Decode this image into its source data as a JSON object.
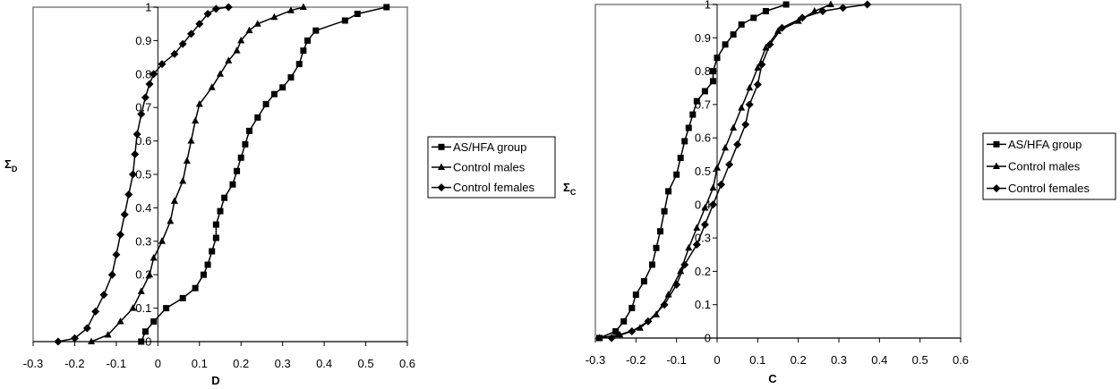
{
  "chart_data": [
    {
      "type": "line",
      "xlabel": "D",
      "ylabel": "Σ",
      "ylabel_sub": "D",
      "xlim": [
        -0.3,
        0.6
      ],
      "ylim": [
        0,
        1
      ],
      "x_ticks": [
        "-0.3",
        "-0.2",
        "-0.1",
        "0",
        "0.1",
        "0.2",
        "0.3",
        "0.4",
        "0.5",
        "0.6"
      ],
      "y_ticks": [
        "0",
        "0.1",
        "0.2",
        "0.3",
        "0.4",
        "0.5",
        "0.6",
        "0.7",
        "0.8",
        "0.9",
        "1"
      ],
      "grid": false,
      "legend": "right",
      "series": [
        {
          "name": "AS/HFA group",
          "marker": "square",
          "points": [
            [
              -0.04,
              0.0
            ],
            [
              -0.03,
              0.03
            ],
            [
              -0.01,
              0.06
            ],
            [
              0.02,
              0.1
            ],
            [
              0.06,
              0.13
            ],
            [
              0.09,
              0.16
            ],
            [
              0.11,
              0.2
            ],
            [
              0.12,
              0.23
            ],
            [
              0.13,
              0.27
            ],
            [
              0.14,
              0.31
            ],
            [
              0.14,
              0.35
            ],
            [
              0.15,
              0.39
            ],
            [
              0.16,
              0.43
            ],
            [
              0.18,
              0.47
            ],
            [
              0.19,
              0.51
            ],
            [
              0.2,
              0.55
            ],
            [
              0.21,
              0.59
            ],
            [
              0.22,
              0.63
            ],
            [
              0.24,
              0.67
            ],
            [
              0.26,
              0.71
            ],
            [
              0.28,
              0.74
            ],
            [
              0.3,
              0.76
            ],
            [
              0.32,
              0.79
            ],
            [
              0.34,
              0.83
            ],
            [
              0.35,
              0.87
            ],
            [
              0.36,
              0.9
            ],
            [
              0.38,
              0.93
            ],
            [
              0.45,
              0.96
            ],
            [
              0.48,
              0.98
            ],
            [
              0.55,
              1.0
            ]
          ]
        },
        {
          "name": "Control males",
          "marker": "triangle",
          "points": [
            [
              -0.16,
              0.0
            ],
            [
              -0.12,
              0.02
            ],
            [
              -0.09,
              0.06
            ],
            [
              -0.06,
              0.1
            ],
            [
              -0.04,
              0.15
            ],
            [
              -0.02,
              0.2
            ],
            [
              -0.01,
              0.25
            ],
            [
              0.01,
              0.3
            ],
            [
              0.03,
              0.36
            ],
            [
              0.04,
              0.42
            ],
            [
              0.06,
              0.48
            ],
            [
              0.07,
              0.54
            ],
            [
              0.08,
              0.6
            ],
            [
              0.09,
              0.66
            ],
            [
              0.1,
              0.71
            ],
            [
              0.13,
              0.76
            ],
            [
              0.15,
              0.8
            ],
            [
              0.17,
              0.84
            ],
            [
              0.19,
              0.87
            ],
            [
              0.2,
              0.9
            ],
            [
              0.22,
              0.93
            ],
            [
              0.24,
              0.95
            ],
            [
              0.28,
              0.97
            ],
            [
              0.32,
              0.99
            ],
            [
              0.35,
              1.0
            ]
          ]
        },
        {
          "name": "Control females",
          "marker": "diamond",
          "points": [
            [
              -0.24,
              0.0
            ],
            [
              -0.2,
              0.01
            ],
            [
              -0.17,
              0.04
            ],
            [
              -0.15,
              0.09
            ],
            [
              -0.13,
              0.14
            ],
            [
              -0.11,
              0.2
            ],
            [
              -0.1,
              0.26
            ],
            [
              -0.09,
              0.32
            ],
            [
              -0.08,
              0.38
            ],
            [
              -0.07,
              0.44
            ],
            [
              -0.06,
              0.5
            ],
            [
              -0.055,
              0.56
            ],
            [
              -0.05,
              0.62
            ],
            [
              -0.04,
              0.68
            ],
            [
              -0.03,
              0.73
            ],
            [
              -0.02,
              0.77
            ],
            [
              -0.01,
              0.8
            ],
            [
              0.01,
              0.83
            ],
            [
              0.04,
              0.86
            ],
            [
              0.06,
              0.89
            ],
            [
              0.08,
              0.92
            ],
            [
              0.1,
              0.95
            ],
            [
              0.12,
              0.98
            ],
            [
              0.14,
              0.995
            ],
            [
              0.17,
              1.0
            ]
          ]
        }
      ]
    },
    {
      "type": "line",
      "xlabel": "C",
      "ylabel": "Σ",
      "ylabel_sub": "C",
      "xlim": [
        -0.3,
        0.6
      ],
      "ylim": [
        0,
        1
      ],
      "x_ticks": [
        "-0.3",
        "-0.2",
        "-0.1",
        "0",
        "0.1",
        "0.2",
        "0.3",
        "0.4",
        "0.5",
        "0.6"
      ],
      "y_ticks": [
        "0",
        "0.1",
        "0.2",
        "0.3",
        "0.4",
        "0.5",
        "0.6",
        "0.7",
        "0.8",
        "0.9",
        "1"
      ],
      "grid": false,
      "legend": "right",
      "series": [
        {
          "name": "AS/HFA group",
          "marker": "square",
          "points": [
            [
              -0.29,
              0.0
            ],
            [
              -0.25,
              0.02
            ],
            [
              -0.23,
              0.05
            ],
            [
              -0.21,
              0.09
            ],
            [
              -0.2,
              0.13
            ],
            [
              -0.18,
              0.17
            ],
            [
              -0.16,
              0.22
            ],
            [
              -0.15,
              0.27
            ],
            [
              -0.14,
              0.32
            ],
            [
              -0.13,
              0.38
            ],
            [
              -0.12,
              0.44
            ],
            [
              -0.1,
              0.49
            ],
            [
              -0.09,
              0.54
            ],
            [
              -0.08,
              0.59
            ],
            [
              -0.07,
              0.63
            ],
            [
              -0.06,
              0.67
            ],
            [
              -0.05,
              0.71
            ],
            [
              -0.03,
              0.74
            ],
            [
              -0.01,
              0.77
            ],
            [
              -0.01,
              0.8
            ],
            [
              0.0,
              0.84
            ],
            [
              0.02,
              0.88
            ],
            [
              0.04,
              0.91
            ],
            [
              0.06,
              0.94
            ],
            [
              0.09,
              0.96
            ],
            [
              0.12,
              0.98
            ],
            [
              0.17,
              1.0
            ]
          ]
        },
        {
          "name": "Control males",
          "marker": "triangle",
          "points": [
            [
              -0.29,
              0.0
            ],
            [
              -0.24,
              0.01
            ],
            [
              -0.19,
              0.03
            ],
            [
              -0.15,
              0.07
            ],
            [
              -0.12,
              0.13
            ],
            [
              -0.09,
              0.2
            ],
            [
              -0.07,
              0.27
            ],
            [
              -0.05,
              0.33
            ],
            [
              -0.03,
              0.39
            ],
            [
              -0.01,
              0.45
            ],
            [
              0.0,
              0.51
            ],
            [
              0.02,
              0.57
            ],
            [
              0.04,
              0.63
            ],
            [
              0.06,
              0.69
            ],
            [
              0.08,
              0.75
            ],
            [
              0.1,
              0.81
            ],
            [
              0.12,
              0.87
            ],
            [
              0.15,
              0.92
            ],
            [
              0.2,
              0.95
            ],
            [
              0.24,
              0.98
            ],
            [
              0.28,
              1.0
            ]
          ]
        },
        {
          "name": "Control females",
          "marker": "diamond",
          "points": [
            [
              -0.26,
              0.0
            ],
            [
              -0.21,
              0.02
            ],
            [
              -0.17,
              0.05
            ],
            [
              -0.13,
              0.1
            ],
            [
              -0.1,
              0.16
            ],
            [
              -0.08,
              0.22
            ],
            [
              -0.05,
              0.28
            ],
            [
              -0.03,
              0.34
            ],
            [
              -0.01,
              0.4
            ],
            [
              0.01,
              0.46
            ],
            [
              0.03,
              0.52
            ],
            [
              0.05,
              0.58
            ],
            [
              0.07,
              0.64
            ],
            [
              0.08,
              0.7
            ],
            [
              0.1,
              0.76
            ],
            [
              0.11,
              0.82
            ],
            [
              0.13,
              0.88
            ],
            [
              0.16,
              0.93
            ],
            [
              0.21,
              0.96
            ],
            [
              0.26,
              0.98
            ],
            [
              0.31,
              0.99
            ],
            [
              0.37,
              1.0
            ]
          ]
        }
      ]
    }
  ]
}
